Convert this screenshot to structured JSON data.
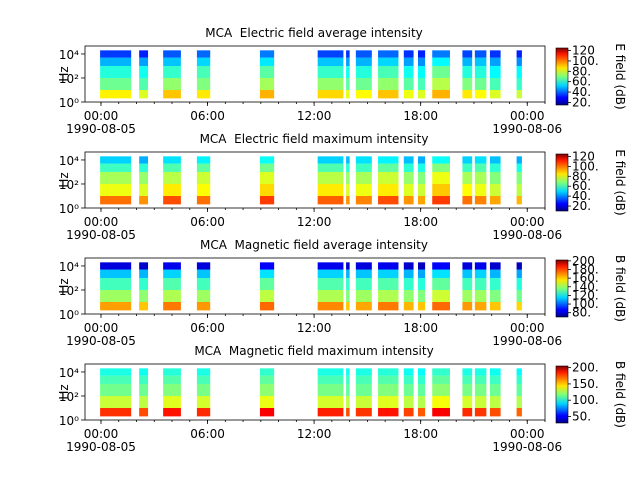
{
  "chart_data": [
    {
      "type": "spectrogram",
      "title": "MCA  Electric field average intensity",
      "ylabel": "Hz",
      "yscale": "log",
      "colormap": "jet",
      "xlim": [
        -0.9,
        25
      ],
      "ylim": [
        1,
        46000
      ],
      "xticks": [
        {
          "value": 0,
          "label": "00:00",
          "sublabel": "1990-08-05"
        },
        {
          "value": 6,
          "label": "06:00"
        },
        {
          "value": 12,
          "label": "12:00"
        },
        {
          "value": 18,
          "label": "18:00"
        },
        {
          "value": 24,
          "label": "00:00",
          "sublabel": "1990-08-06"
        }
      ],
      "yticks": [
        {
          "value": 1,
          "label": "10⁰"
        },
        {
          "value": 100,
          "label": "10²"
        },
        {
          "value": 10000,
          "label": "10⁴"
        }
      ],
      "freq_bins": [
        2,
        10,
        100,
        1000,
        5000,
        20000
      ],
      "segments": [
        [
          -0.05,
          1.7
        ],
        [
          2.15,
          2.65
        ],
        [
          3.5,
          4.5
        ],
        [
          5.4,
          6.15
        ],
        [
          8.95,
          9.75
        ],
        [
          12.2,
          13.65
        ],
        [
          13.8,
          14.0
        ],
        [
          14.35,
          15.25
        ],
        [
          15.6,
          16.75
        ],
        [
          17.05,
          17.6
        ],
        [
          17.85,
          18.25
        ],
        [
          18.65,
          19.65
        ],
        [
          20.35,
          20.9
        ],
        [
          21.05,
          21.7
        ],
        [
          21.9,
          22.5
        ],
        [
          23.4,
          23.7
        ]
      ],
      "z": [
        [
          85,
          68,
          60,
          48,
          35
        ],
        [
          80,
          65,
          58,
          46,
          32
        ],
        [
          90,
          72,
          62,
          50,
          38
        ],
        [
          86,
          70,
          64,
          52,
          40
        ],
        [
          92,
          74,
          66,
          54,
          42
        ],
        [
          88,
          72,
          62,
          50,
          36
        ],
        [
          82,
          66,
          58,
          46,
          34
        ],
        [
          84,
          68,
          60,
          48,
          38
        ],
        [
          90,
          72,
          64,
          52,
          40
        ],
        [
          82,
          66,
          58,
          46,
          34
        ],
        [
          80,
          64,
          56,
          44,
          32
        ],
        [
          92,
          76,
          68,
          56,
          42
        ],
        [
          86,
          70,
          60,
          48,
          36
        ],
        [
          84,
          68,
          60,
          50,
          38
        ],
        [
          80,
          64,
          56,
          46,
          34
        ],
        [
          78,
          62,
          56,
          44,
          32
        ]
      ],
      "zlim": [
        15,
        125
      ],
      "zlabel": "E field (dB)",
      "zticks": [
        {
          "value": 20,
          "label": "20."
        },
        {
          "value": 40,
          "label": "40."
        },
        {
          "value": 60,
          "label": "60."
        },
        {
          "value": 80,
          "label": "80."
        },
        {
          "value": 100,
          "label": "100."
        },
        {
          "value": 120,
          "label": "120"
        }
      ]
    },
    {
      "type": "spectrogram",
      "title": "MCA  Electric field maximum intensity",
      "ylabel": "Hz",
      "yscale": "log",
      "colormap": "jet",
      "xlim": [
        -0.9,
        25
      ],
      "ylim": [
        1,
        46000
      ],
      "xticks": [
        {
          "value": 0,
          "label": "00:00",
          "sublabel": "1990-08-05"
        },
        {
          "value": 6,
          "label": "06:00"
        },
        {
          "value": 12,
          "label": "12:00"
        },
        {
          "value": 18,
          "label": "18:00"
        },
        {
          "value": 24,
          "label": "00:00",
          "sublabel": "1990-08-06"
        }
      ],
      "yticks": [
        {
          "value": 1,
          "label": "10⁰"
        },
        {
          "value": 100,
          "label": "10²"
        },
        {
          "value": 10000,
          "label": "10⁴"
        }
      ],
      "freq_bins": [
        2,
        10,
        100,
        1000,
        5000,
        20000
      ],
      "segments": [
        [
          -0.05,
          1.7
        ],
        [
          2.15,
          2.65
        ],
        [
          3.5,
          4.5
        ],
        [
          5.4,
          6.15
        ],
        [
          8.95,
          9.75
        ],
        [
          12.2,
          13.65
        ],
        [
          13.8,
          14.0
        ],
        [
          14.35,
          15.25
        ],
        [
          15.6,
          16.75
        ],
        [
          17.05,
          17.6
        ],
        [
          17.85,
          18.25
        ],
        [
          18.65,
          19.65
        ],
        [
          20.35,
          20.9
        ],
        [
          21.05,
          21.7
        ],
        [
          21.9,
          22.5
        ],
        [
          23.4,
          23.7
        ]
      ],
      "z": [
        [
          98,
          80,
          72,
          60,
          48
        ],
        [
          94,
          78,
          70,
          58,
          44
        ],
        [
          102,
          84,
          74,
          62,
          50
        ],
        [
          98,
          82,
          76,
          64,
          52
        ],
        [
          104,
          86,
          78,
          66,
          54
        ],
        [
          100,
          84,
          74,
          62,
          48
        ],
        [
          94,
          78,
          70,
          58,
          46
        ],
        [
          96,
          80,
          72,
          60,
          50
        ],
        [
          102,
          84,
          76,
          64,
          52
        ],
        [
          94,
          78,
          70,
          58,
          46
        ],
        [
          92,
          76,
          68,
          56,
          44
        ],
        [
          104,
          88,
          80,
          68,
          54
        ],
        [
          98,
          82,
          72,
          60,
          48
        ],
        [
          96,
          80,
          72,
          62,
          50
        ],
        [
          92,
          76,
          68,
          58,
          46
        ],
        [
          90,
          74,
          68,
          56,
          44
        ]
      ],
      "zlim": [
        10,
        125
      ],
      "zlabel": "E field (dB)",
      "zticks": [
        {
          "value": 20,
          "label": "20."
        },
        {
          "value": 40,
          "label": "40."
        },
        {
          "value": 60,
          "label": "60."
        },
        {
          "value": 80,
          "label": "80."
        },
        {
          "value": 100,
          "label": "100."
        },
        {
          "value": 120,
          "label": "120"
        }
      ]
    },
    {
      "type": "spectrogram",
      "title": "MCA  Magnetic field average intensity",
      "ylabel": "Hz",
      "yscale": "log",
      "colormap": "jet",
      "xlim": [
        -0.9,
        25
      ],
      "ylim": [
        1,
        46000
      ],
      "xticks": [
        {
          "value": 0,
          "label": "00:00",
          "sublabel": "1990-08-05"
        },
        {
          "value": 6,
          "label": "06:00"
        },
        {
          "value": 12,
          "label": "12:00"
        },
        {
          "value": 18,
          "label": "18:00"
        },
        {
          "value": 24,
          "label": "00:00",
          "sublabel": "1990-08-06"
        }
      ],
      "yticks": [
        {
          "value": 1,
          "label": "10⁰"
        },
        {
          "value": 100,
          "label": "10²"
        },
        {
          "value": 10000,
          "label": "10⁴"
        }
      ],
      "freq_bins": [
        2,
        10,
        100,
        1000,
        5000,
        20000
      ],
      "segments": [
        [
          -0.05,
          1.7
        ],
        [
          2.15,
          2.65
        ],
        [
          3.5,
          4.5
        ],
        [
          5.4,
          6.15
        ],
        [
          8.95,
          9.75
        ],
        [
          12.2,
          13.65
        ],
        [
          13.8,
          14.0
        ],
        [
          14.35,
          15.25
        ],
        [
          15.6,
          16.75
        ],
        [
          17.05,
          17.6
        ],
        [
          17.85,
          18.25
        ],
        [
          18.65,
          19.65
        ],
        [
          20.35,
          20.9
        ],
        [
          21.05,
          21.7
        ],
        [
          21.9,
          22.5
        ],
        [
          23.4,
          23.7
        ]
      ],
      "z": [
        [
          165,
          140,
          128,
          112,
          82
        ],
        [
          160,
          138,
          126,
          110,
          80
        ],
        [
          170,
          142,
          130,
          114,
          84
        ],
        [
          166,
          140,
          128,
          112,
          82
        ],
        [
          172,
          144,
          132,
          116,
          86
        ],
        [
          168,
          142,
          130,
          114,
          84
        ],
        [
          160,
          136,
          126,
          110,
          80
        ],
        [
          164,
          140,
          128,
          112,
          82
        ],
        [
          170,
          142,
          130,
          114,
          84
        ],
        [
          162,
          138,
          126,
          110,
          80
        ],
        [
          160,
          136,
          124,
          108,
          78
        ],
        [
          172,
          146,
          132,
          116,
          86
        ],
        [
          166,
          140,
          128,
          112,
          82
        ],
        [
          164,
          140,
          128,
          114,
          84
        ],
        [
          160,
          136,
          126,
          110,
          80
        ],
        [
          158,
          134,
          124,
          108,
          78
        ]
      ],
      "zlim": [
        70,
        202
      ],
      "zlabel": "B field (dB)",
      "zticks": [
        {
          "value": 80,
          "label": "80."
        },
        {
          "value": 100,
          "label": "100."
        },
        {
          "value": 120,
          "label": "120."
        },
        {
          "value": 140,
          "label": "140."
        },
        {
          "value": 160,
          "label": "160."
        },
        {
          "value": 180,
          "label": "180."
        },
        {
          "value": 200,
          "label": "200"
        }
      ]
    },
    {
      "type": "spectrogram",
      "title": "MCA  Magnetic field maximum intensity",
      "ylabel": "Hz",
      "yscale": "log",
      "colormap": "jet",
      "xlim": [
        -0.9,
        25
      ],
      "ylim": [
        1,
        46000
      ],
      "xticks": [
        {
          "value": 0,
          "label": "00:00",
          "sublabel": "1990-08-05"
        },
        {
          "value": 6,
          "label": "06:00"
        },
        {
          "value": 12,
          "label": "12:00"
        },
        {
          "value": 18,
          "label": "18:00"
        },
        {
          "value": 24,
          "label": "00:00",
          "sublabel": "1990-08-06"
        }
      ],
      "yticks": [
        {
          "value": 1,
          "label": "10⁰"
        },
        {
          "value": 100,
          "label": "10²"
        },
        {
          "value": 10000,
          "label": "10⁴"
        }
      ],
      "freq_bins": [
        2,
        10,
        100,
        1000,
        5000,
        20000
      ],
      "segments": [
        [
          -0.05,
          1.7
        ],
        [
          2.15,
          2.65
        ],
        [
          3.5,
          4.5
        ],
        [
          5.4,
          6.15
        ],
        [
          8.95,
          9.75
        ],
        [
          12.2,
          13.65
        ],
        [
          13.8,
          14.0
        ],
        [
          14.35,
          15.25
        ],
        [
          15.6,
          16.75
        ],
        [
          17.05,
          17.6
        ],
        [
          17.85,
          18.25
        ],
        [
          18.65,
          19.65
        ],
        [
          20.35,
          20.9
        ],
        [
          21.05,
          21.7
        ],
        [
          21.9,
          22.5
        ],
        [
          23.4,
          23.7
        ]
      ],
      "z": [
        [
          175,
          130,
          115,
          108,
          100
        ],
        [
          170,
          128,
          114,
          106,
          98
        ],
        [
          180,
          134,
          118,
          110,
          102
        ],
        [
          176,
          132,
          116,
          108,
          100
        ],
        [
          184,
          136,
          120,
          112,
          104
        ],
        [
          178,
          132,
          116,
          108,
          100
        ],
        [
          170,
          128,
          112,
          106,
          98
        ],
        [
          174,
          130,
          114,
          108,
          100
        ],
        [
          180,
          134,
          118,
          110,
          102
        ],
        [
          172,
          128,
          114,
          106,
          98
        ],
        [
          168,
          126,
          112,
          104,
          96
        ],
        [
          184,
          138,
          120,
          112,
          104
        ],
        [
          176,
          132,
          116,
          108,
          100
        ],
        [
          174,
          130,
          116,
          108,
          100
        ],
        [
          170,
          128,
          114,
          106,
          98
        ],
        [
          166,
          126,
          112,
          104,
          96
        ]
      ],
      "zlim": [
        30,
        205
      ],
      "zlabel": "B field (dB)",
      "zticks": [
        {
          "value": 50,
          "label": "50."
        },
        {
          "value": 100,
          "label": "100."
        },
        {
          "value": 150,
          "label": "150."
        },
        {
          "value": 200,
          "label": "200."
        }
      ]
    }
  ]
}
